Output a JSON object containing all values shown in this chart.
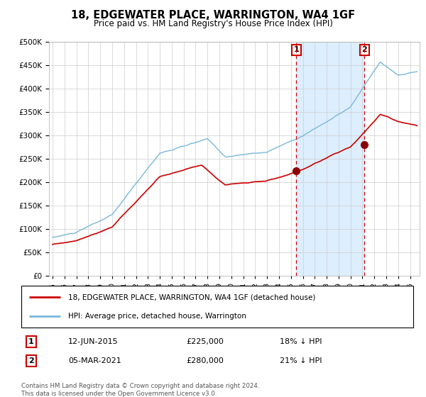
{
  "title": "18, EDGEWATER PLACE, WARRINGTON, WA4 1GF",
  "subtitle": "Price paid vs. HM Land Registry's House Price Index (HPI)",
  "legend_line1": "18, EDGEWATER PLACE, WARRINGTON, WA4 1GF (detached house)",
  "legend_line2": "HPI: Average price, detached house, Warrington",
  "transaction1_date": "12-JUN-2015",
  "transaction1_price": 225000,
  "transaction1_label": "18% ↓ HPI",
  "transaction1_year": 2015.45,
  "transaction2_date": "05-MAR-2021",
  "transaction2_price": 280000,
  "transaction2_label": "21% ↓ HPI",
  "transaction2_year": 2021.17,
  "footnote1": "Contains HM Land Registry data © Crown copyright and database right 2024.",
  "footnote2": "This data is licensed under the Open Government Licence v3.0.",
  "hpi_color": "#7ab8d9",
  "price_color": "#cc0000",
  "marker_color": "#8b0000",
  "vline_color": "#cc0000",
  "shade_color": "#ddeeff",
  "background_color": "#ffffff",
  "grid_color": "#cccccc",
  "box_color": "#cc0000",
  "ylim": [
    0,
    500000
  ],
  "ytick_step": 50000,
  "xlim_start": 1994.7,
  "xlim_end": 2025.8
}
